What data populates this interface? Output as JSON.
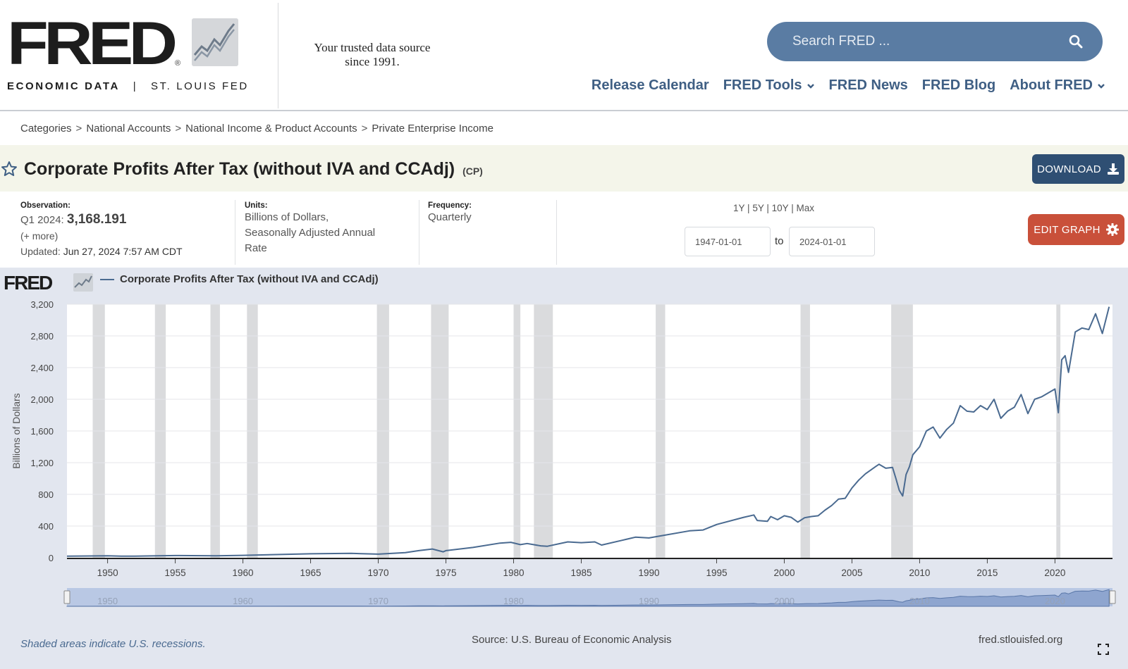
{
  "header": {
    "logo_word": "FRED",
    "logo_reg": "®",
    "logo_sub_left": "ECONOMIC DATA",
    "logo_sub_sep": "|",
    "logo_sub_right": "ST. LOUIS FED",
    "tagline_line1": "Your trusted data source",
    "tagline_line2": "since 1991.",
    "search_placeholder": "Search FRED ..."
  },
  "nav": {
    "items": [
      {
        "label": "Release Calendar"
      },
      {
        "label": "FRED Tools"
      },
      {
        "label": "FRED News"
      },
      {
        "label": "FRED Blog"
      },
      {
        "label": "About FRED"
      }
    ]
  },
  "breadcrumb": {
    "items": [
      "Categories",
      "National Accounts",
      "National Income & Product Accounts",
      "Private Enterprise Income"
    ],
    "separator": ">"
  },
  "series": {
    "title": "Corporate Profits After Tax (without IVA and CCAdj)",
    "id": "(CP)",
    "download_label": "DOWNLOAD"
  },
  "meta": {
    "observation_label": "Observation:",
    "observation_period": "Q1 2024:",
    "observation_value": "3,168.191",
    "more_link": "(+ more)",
    "updated_label": "Updated:",
    "updated_value": "Jun 27, 2024 7:57 AM CDT",
    "units_label": "Units:",
    "units_line1": "Billions of Dollars,",
    "units_line2": "Seasonally Adjusted Annual",
    "units_line3": "Rate",
    "frequency_label": "Frequency:",
    "frequency_value": "Quarterly",
    "range_1y": "1Y",
    "range_5y": "5Y",
    "range_10y": "10Y",
    "range_max": "Max",
    "range_sep": "|",
    "start_date": "1947-01-01",
    "to_label": "to",
    "end_date": "2024-01-01",
    "edit_label": "EDIT GRAPH"
  },
  "graph": {
    "mini_logo": "FRED",
    "legend_label": "Corporate Profits After Tax (without IVA and CCAdj)",
    "recession_note": "Shaded areas indicate U.S. recessions.",
    "source": "Source: U.S. Bureau of Economic Analysis",
    "site": "fred.stlouisfed.org"
  },
  "colors": {
    "nav": "#3f5f84",
    "search_bg": "#5a7ca3",
    "download_bg": "#2f4f73",
    "edit_bg": "#c9503a",
    "line": "#4a6a90",
    "recession": "#dadbdd",
    "panel_bg": "#e2e6ef"
  },
  "chart_data": {
    "type": "line",
    "title": "Corporate Profits After Tax (without IVA and CCAdj)",
    "ylabel": "Billions of Dollars",
    "xlabel": "",
    "ylim": [
      0,
      3200
    ],
    "xlim": [
      1947,
      2024.25
    ],
    "y_ticks": [
      0,
      400,
      800,
      1200,
      1600,
      2000,
      2400,
      2800,
      3200
    ],
    "y_tick_labels": [
      "0",
      "400",
      "800",
      "1,200",
      "1,600",
      "2,000",
      "2,400",
      "2,800",
      "3,200"
    ],
    "x_ticks": [
      1950,
      1955,
      1960,
      1965,
      1970,
      1975,
      1980,
      1985,
      1990,
      1995,
      2000,
      2005,
      2010,
      2015,
      2020
    ],
    "x_tick_labels": [
      "1950",
      "1955",
      "1960",
      "1965",
      "1970",
      "1975",
      "1980",
      "1985",
      "1990",
      "1995",
      "2000",
      "2005",
      "2010",
      "2015",
      "2020"
    ],
    "navigator_labels": [
      "1950",
      "1960",
      "1970",
      "1980",
      "1990",
      "2000",
      "2010",
      "2020"
    ],
    "recessions": [
      [
        1948.9,
        1949.8
      ],
      [
        1953.5,
        1954.3
      ],
      [
        1957.6,
        1958.3
      ],
      [
        1960.3,
        1961.1
      ],
      [
        1969.9,
        1970.8
      ],
      [
        1973.9,
        1975.2
      ],
      [
        1980.0,
        1980.5
      ],
      [
        1981.5,
        1982.9
      ],
      [
        1990.5,
        1991.2
      ],
      [
        2001.2,
        2001.9
      ],
      [
        2007.9,
        2009.5
      ],
      [
        2020.1,
        2020.4
      ]
    ],
    "series": [
      {
        "name": "Corporate Profits After Tax (without IVA and CCAdj)",
        "x": [
          1947,
          1950,
          1951,
          1952,
          1955,
          1958,
          1960,
          1965,
          1968,
          1970,
          1972,
          1973,
          1974,
          1974.8,
          1975,
          1977,
          1979,
          1979.8,
          1980.5,
          1981,
          1982,
          1982.5,
          1984,
          1985,
          1986,
          1986.5,
          1988,
          1989,
          1990,
          1991,
          1993,
          1994,
          1995,
          1997,
          1997.75,
          1998,
          1998.75,
          1999,
          1999.5,
          2000,
          2000.5,
          2001,
          2001.5,
          2002,
          2002.5,
          2003,
          2003.5,
          2004,
          2004.5,
          2005,
          2005.5,
          2006,
          2006.75,
          2007,
          2007.5,
          2008,
          2008.25,
          2008.5,
          2008.75,
          2009,
          2009.25,
          2009.5,
          2010,
          2010.5,
          2011,
          2011.5,
          2012,
          2012.5,
          2013,
          2013.5,
          2014,
          2014.5,
          2015,
          2015.5,
          2016,
          2016.5,
          2017,
          2017.5,
          2018,
          2018.5,
          2019,
          2019.5,
          2020,
          2020.25,
          2020.5,
          2020.75,
          2021,
          2021.5,
          2022,
          2022.5,
          2023,
          2023.5,
          2024
        ],
        "y": [
          20,
          25,
          20,
          20,
          28,
          25,
          30,
          50,
          55,
          45,
          65,
          90,
          110,
          75,
          90,
          130,
          185,
          195,
          165,
          180,
          150,
          145,
          200,
          190,
          200,
          160,
          220,
          260,
          250,
          280,
          340,
          350,
          420,
          510,
          540,
          470,
          460,
          520,
          480,
          530,
          510,
          450,
          505,
          520,
          530,
          600,
          660,
          740,
          750,
          880,
          980,
          1060,
          1150,
          1180,
          1130,
          1140,
          1000,
          850,
          780,
          1050,
          1150,
          1300,
          1400,
          1600,
          1650,
          1510,
          1620,
          1700,
          1920,
          1850,
          1840,
          1920,
          1870,
          2000,
          1760,
          1850,
          1900,
          2060,
          1820,
          2000,
          2030,
          2080,
          2130,
          1830,
          2500,
          2550,
          2340,
          2850,
          2900,
          2880,
          3080,
          2830,
          3168
        ]
      }
    ]
  }
}
